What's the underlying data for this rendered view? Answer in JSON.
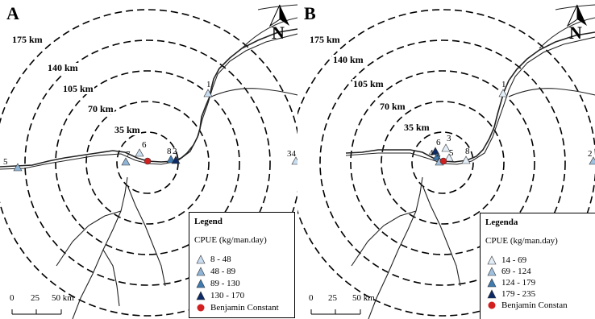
{
  "maps": [
    {
      "panel_letter": "A",
      "rings": [
        "175 km",
        "140 km",
        "105 km",
        "70 km",
        "35 km"
      ],
      "site_labels": [
        "1",
        "5",
        "6",
        "7",
        "8",
        "2",
        "34"
      ],
      "legend": {
        "title": "Legend",
        "subtitle": "CPUE (kg/man.day)",
        "items": [
          {
            "label": "8 - 48",
            "symbol": "triangle",
            "color": "#c9ddf0"
          },
          {
            "label": "48 - 89",
            "symbol": "triangle",
            "color": "#8fb4d6"
          },
          {
            "label": "89 - 130",
            "symbol": "triangle",
            "color": "#3f7ab0"
          },
          {
            "label": "130 - 170",
            "symbol": "triangle",
            "color": "#0d2a66"
          },
          {
            "label": "Benjamin Constant",
            "symbol": "circle",
            "color": "#d21f1f"
          }
        ]
      },
      "scale": {
        "ticks": [
          "0",
          "25",
          "50 km"
        ]
      },
      "north_label": "N"
    },
    {
      "panel_letter": "B",
      "rings": [
        "175 km",
        "140 km",
        "105 km",
        "70 km",
        "35 km"
      ],
      "site_labels": [
        "1",
        "6",
        "3",
        "4",
        "7",
        "5",
        "8",
        "2"
      ],
      "legend": {
        "title": "Legenda",
        "subtitle": "CPUE (kg/man.day)",
        "items": [
          {
            "label": "14 - 69",
            "symbol": "triangle",
            "color": "#e3eef8"
          },
          {
            "label": "69 - 124",
            "symbol": "triangle",
            "color": "#9fc1e0"
          },
          {
            "label": "124 - 179",
            "symbol": "triangle",
            "color": "#3f7ab0"
          },
          {
            "label": "179 - 235",
            "symbol": "triangle",
            "color": "#0d2a66"
          },
          {
            "label": "Benjamin Constan",
            "symbol": "circle",
            "color": "#d21f1f"
          }
        ]
      },
      "scale": {
        "ticks": [
          "0",
          "25",
          "50 km"
        ]
      },
      "north_label": "N"
    }
  ]
}
